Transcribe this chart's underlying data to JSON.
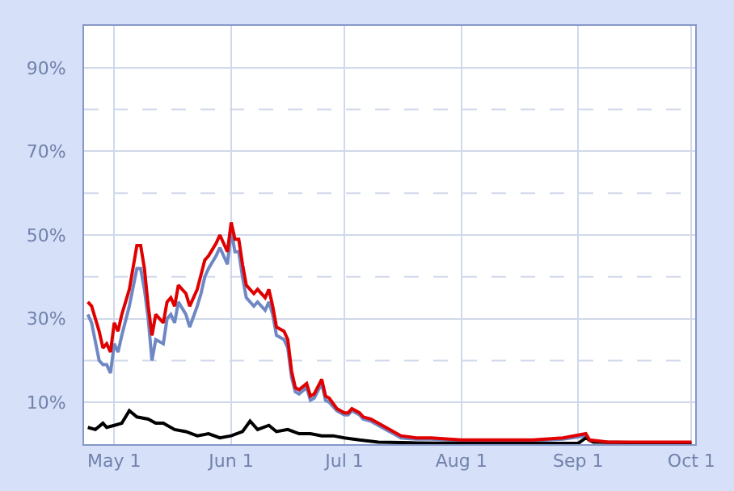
{
  "chart_data": {
    "type": "line",
    "xlim": [
      "--04-23",
      "--10-02"
    ],
    "xticks": [
      {
        "value": "--05-01",
        "label": "May 1"
      },
      {
        "value": "--06-01",
        "label": "Jun 1"
      },
      {
        "value": "--07-01",
        "label": "Jul 1"
      },
      {
        "value": "--08-01",
        "label": "Aug 1"
      },
      {
        "value": "--09-01",
        "label": "Sep 1"
      },
      {
        "value": "--10-01",
        "label": "Oct 1"
      }
    ],
    "ylim": [
      0,
      100
    ],
    "yticks": [
      {
        "value": 10,
        "label": "10%"
      },
      {
        "value": 20,
        "label": null
      },
      {
        "value": 30,
        "label": "30%"
      },
      {
        "value": 40,
        "label": null
      },
      {
        "value": 50,
        "label": "50%"
      },
      {
        "value": 60,
        "label": null
      },
      {
        "value": 70,
        "label": "70%"
      },
      {
        "value": 80,
        "label": null
      },
      {
        "value": 90,
        "label": "90%"
      }
    ],
    "grid": true,
    "marker": "none",
    "line_style": "solid",
    "series": [
      {
        "color": "#6f88c4",
        "x": [
          "--04-24",
          "--04-25",
          "--04-27",
          "--04-28",
          "--04-29",
          "--04-30",
          "--05-01",
          "--05-02",
          "--05-03",
          "--05-05",
          "--05-07",
          "--05-08",
          "--05-09",
          "--05-10",
          "--05-11",
          "--05-12",
          "--05-14",
          "--05-15",
          "--05-16",
          "--05-17",
          "--05-18",
          "--05-20",
          "--05-21",
          "--05-23",
          "--05-24",
          "--05-25",
          "--05-26",
          "--05-28",
          "--05-29",
          "--05-31",
          "--06-01",
          "--06-02",
          "--06-03",
          "--06-04",
          "--06-05",
          "--06-07",
          "--06-08",
          "--06-10",
          "--06-11",
          "--06-12",
          "--06-13",
          "--06-15",
          "--06-16",
          "--06-17",
          "--06-18",
          "--06-19",
          "--06-21",
          "--06-22",
          "--06-23",
          "--06-25",
          "--06-26",
          "--06-27",
          "--06-29",
          "--07-01",
          "--07-02",
          "--07-03",
          "--07-05",
          "--07-06",
          "--07-08",
          "--07-10",
          "--07-12",
          "--07-14",
          "--07-16",
          "--07-20",
          "--07-24",
          "--08-01",
          "--08-10",
          "--08-20",
          "--08-28",
          "--09-03",
          "--09-04",
          "--09-09",
          "--10-01"
        ],
        "values": [
          31,
          29,
          20,
          19,
          19,
          17,
          24,
          22,
          26,
          33,
          42,
          42,
          37,
          30,
          20,
          25,
          24,
          30,
          31,
          29,
          34,
          31,
          28,
          33,
          36,
          40,
          42,
          45,
          47,
          43,
          51,
          46,
          46,
          40,
          35,
          33,
          34,
          32,
          34,
          31,
          26,
          25,
          23,
          16,
          12.5,
          12,
          13.5,
          10.5,
          11,
          14.5,
          10.5,
          10,
          8,
          7,
          7,
          8,
          7,
          6,
          5.5,
          4.5,
          3.5,
          2.5,
          1.5,
          1.2,
          1.2,
          0.8,
          0.8,
          0.8,
          1.2,
          2,
          0.8,
          0.4,
          0.4
        ]
      },
      {
        "color": "#000000",
        "x": [
          "--04-24",
          "--04-26",
          "--04-28",
          "--04-29",
          "--05-01",
          "--05-03",
          "--05-05",
          "--05-07",
          "--05-10",
          "--05-12",
          "--05-14",
          "--05-17",
          "--05-20",
          "--05-23",
          "--05-26",
          "--05-29",
          "--06-01",
          "--06-04",
          "--06-06",
          "--06-08",
          "--06-11",
          "--06-13",
          "--06-16",
          "--06-19",
          "--06-22",
          "--06-25",
          "--06-28",
          "--07-01",
          "--07-05",
          "--07-10",
          "--07-20",
          "--08-01",
          "--09-01",
          "--09-03",
          "--09-05",
          "--10-01"
        ],
        "values": [
          4,
          3.5,
          5,
          4,
          4.5,
          5,
          8,
          6.5,
          6,
          5,
          5,
          3.5,
          3,
          2,
          2.5,
          1.5,
          2,
          3,
          5.5,
          3.5,
          4.5,
          3,
          3.5,
          2.5,
          2.5,
          2,
          2,
          1.5,
          1,
          0.5,
          0.3,
          0.2,
          0.2,
          1.5,
          0.5,
          0.2
        ]
      },
      {
        "color": "#e00000",
        "x": [
          "--04-24",
          "--04-25",
          "--04-27",
          "--04-28",
          "--04-29",
          "--04-30",
          "--05-01",
          "--05-02",
          "--05-03",
          "--05-05",
          "--05-07",
          "--05-08",
          "--05-09",
          "--05-10",
          "--05-11",
          "--05-12",
          "--05-14",
          "--05-15",
          "--05-16",
          "--05-17",
          "--05-18",
          "--05-20",
          "--05-21",
          "--05-23",
          "--05-24",
          "--05-25",
          "--05-26",
          "--05-28",
          "--05-29",
          "--05-31",
          "--06-01",
          "--06-02",
          "--06-03",
          "--06-04",
          "--06-05",
          "--06-07",
          "--06-08",
          "--06-10",
          "--06-11",
          "--06-12",
          "--06-13",
          "--06-15",
          "--06-16",
          "--06-17",
          "--06-18",
          "--06-19",
          "--06-21",
          "--06-22",
          "--06-23",
          "--06-25",
          "--06-26",
          "--06-27",
          "--06-29",
          "--07-01",
          "--07-02",
          "--07-03",
          "--07-05",
          "--07-06",
          "--07-08",
          "--07-10",
          "--07-12",
          "--07-14",
          "--07-16",
          "--07-20",
          "--07-24",
          "--08-01",
          "--08-10",
          "--08-20",
          "--08-28",
          "--09-03",
          "--09-04",
          "--09-09",
          "--10-01"
        ],
        "values": [
          34,
          33,
          27,
          23,
          24,
          22,
          29,
          27,
          31,
          37,
          47.5,
          47.5,
          42,
          33,
          26,
          31,
          29,
          34,
          35,
          33,
          38,
          36,
          33,
          37,
          40.5,
          44,
          45,
          48,
          50,
          46,
          53,
          49,
          49,
          43,
          38,
          36,
          37,
          35,
          37,
          33,
          28,
          27,
          25,
          17.5,
          13.5,
          13,
          14.5,
          11.5,
          12,
          15.5,
          11.5,
          11,
          8.5,
          7.5,
          7.5,
          8.5,
          7.5,
          6.5,
          6,
          5,
          4,
          3,
          2,
          1.5,
          1.5,
          1,
          1,
          1,
          1.5,
          2.5,
          1,
          0.5,
          0.5
        ]
      }
    ]
  }
}
